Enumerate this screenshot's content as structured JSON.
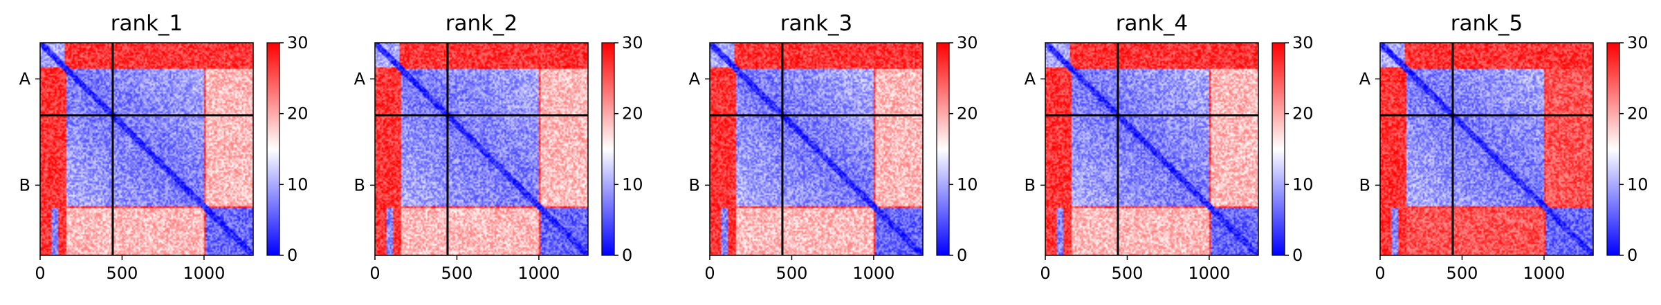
{
  "chart_data": {
    "type": "heatmap",
    "colorscale": {
      "low": "#0000ff",
      "mid": "#ffffff",
      "high": "#ff0000",
      "vmin": 0,
      "vmax": 30
    },
    "colorbar_ticks": [
      0,
      10,
      20,
      30
    ],
    "x_ticks": [
      0,
      500,
      1000
    ],
    "x_range": [
      0,
      1300
    ],
    "y_range": [
      0,
      1300
    ],
    "chain_boundary": 443,
    "chain_labels": [
      {
        "label": "A",
        "position": 221
      },
      {
        "label": "B",
        "position": 871
      }
    ],
    "panels": [
      {
        "title": "rank_1"
      },
      {
        "title": "rank_2"
      },
      {
        "title": "rank_3"
      },
      {
        "title": "rank_4"
      },
      {
        "title": "rank_5"
      }
    ]
  }
}
